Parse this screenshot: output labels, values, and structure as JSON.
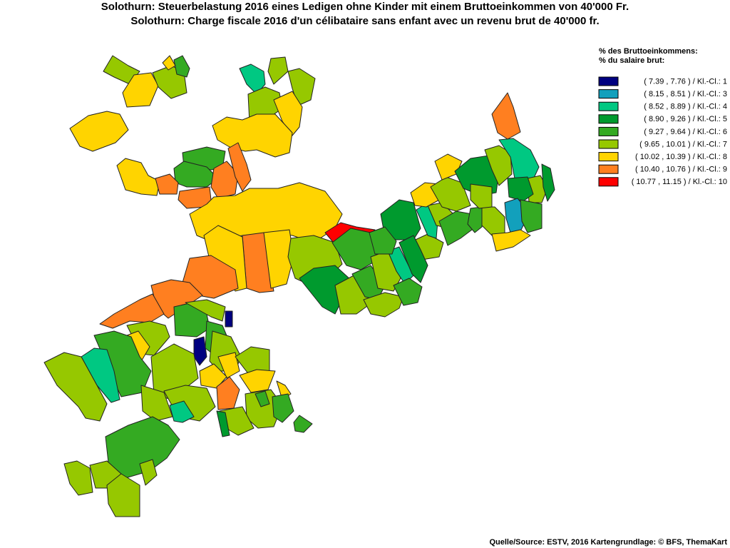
{
  "header": {
    "title_lines": [
      "Solothurn: Steuerbelastung 2016 eines Ledigen ohne Kinder mit einem Bruttoeinkommen von 40'000 Fr.",
      "Solothurn: Charge fiscale 2016 d'un célibataire sans enfant avec un revenu brut de 40'000 fr."
    ]
  },
  "legend": {
    "heading_lines": [
      "% des Bruttoeinkommens:",
      "% du salaire brut:"
    ],
    "items": [
      {
        "label": "( 7.39 , 7.76 ) / Kl.-Cl.: 1",
        "color": "#000080"
      },
      {
        "label": "( 8.15 , 8.51 ) / Kl.-Cl.: 3",
        "color": "#12a0bc"
      },
      {
        "label": "( 8.52 , 8.89 ) / Kl.-Cl.: 4",
        "color": "#00c882"
      },
      {
        "label": "( 8.90 , 9.26 ) / Kl.-Cl.: 5",
        "color": "#009a2e"
      },
      {
        "label": "( 9.27 , 9.64 ) / Kl.-Cl.: 6",
        "color": "#34aa22"
      },
      {
        "label": "( 9.65 , 10.01 ) / Kl.-Cl.: 7",
        "color": "#96c800"
      },
      {
        "label": "( 10.02 , 10.39 ) / Kl.-Cl.: 8",
        "color": "#ffd400"
      },
      {
        "label": "( 10.40 , 10.76 ) / Kl.-Cl.: 9",
        "color": "#ff7f20"
      },
      {
        "label": "( 10.77 , 11.15 ) / Kl.-Cl.: 10",
        "color": "#ff0000"
      }
    ]
  },
  "footer": {
    "source": "Quelle/Source: ESTV, 2016 Kartengrundlage: © BFS, ThemaKart"
  }
}
